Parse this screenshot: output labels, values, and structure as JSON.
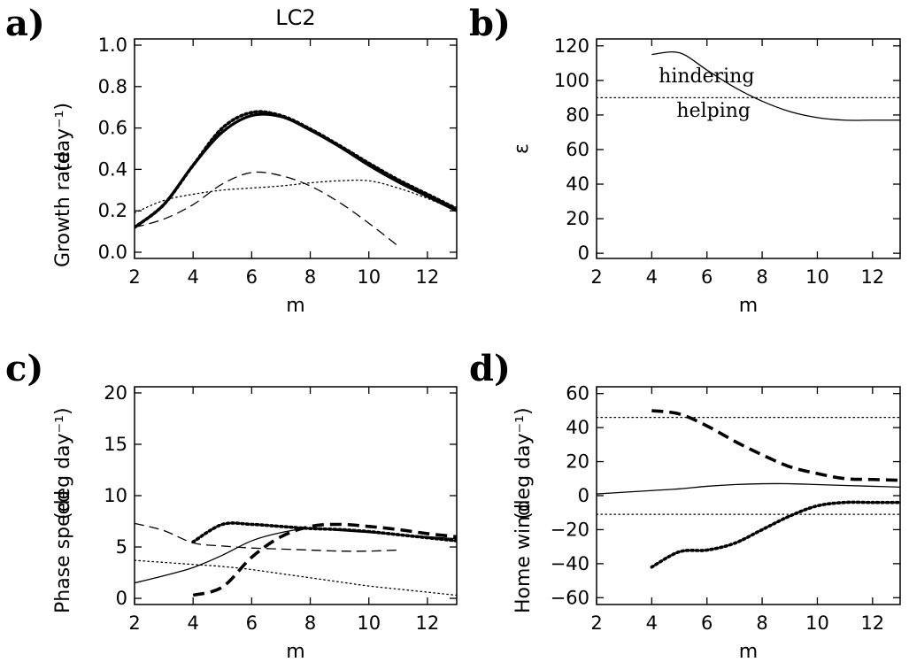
{
  "colors": {
    "foreground": "#000000",
    "background": "#ffffff"
  },
  "chart_data": [
    {
      "type": "line",
      "panel_label": "a)",
      "title": "LC2",
      "xlabel": "m",
      "ylabel": "Growth rate",
      "ylabel_unit": "(day⁻¹)",
      "xlim": [
        2,
        13
      ],
      "ylim": [
        -0.03,
        1.03
      ],
      "xticks": [
        2,
        4,
        6,
        8,
        10,
        12
      ],
      "xtick_labels": [
        "2",
        "4",
        "6",
        "8",
        "10",
        "12"
      ],
      "yticks": [
        0.0,
        0.2,
        0.4,
        0.6,
        0.8,
        1.0
      ],
      "ytick_labels": [
        "0.0",
        "0.2",
        "0.4",
        "0.6",
        "0.8",
        "1.0"
      ],
      "grid": false,
      "series": [
        {
          "style": "solid-thick",
          "x": [
            2,
            3,
            4,
            5,
            6,
            7,
            8,
            9,
            10,
            11,
            12,
            13
          ],
          "y": [
            0.12,
            0.23,
            0.42,
            0.58,
            0.66,
            0.655,
            0.59,
            0.51,
            0.42,
            0.34,
            0.27,
            0.2
          ]
        },
        {
          "style": "dotted-thick",
          "x": [
            2,
            3,
            4,
            5,
            6,
            7,
            8,
            9,
            10,
            11,
            12,
            13
          ],
          "y": [
            0.12,
            0.23,
            0.42,
            0.6,
            0.675,
            0.66,
            0.595,
            0.515,
            0.43,
            0.35,
            0.28,
            0.21
          ]
        },
        {
          "style": "dashed",
          "x": [
            2,
            3,
            4,
            5,
            6,
            7,
            8,
            9,
            10,
            11
          ],
          "y": [
            0.12,
            0.16,
            0.23,
            0.33,
            0.385,
            0.37,
            0.32,
            0.24,
            0.14,
            0.03
          ]
        },
        {
          "style": "dotted",
          "x": [
            2,
            3,
            4,
            5,
            6,
            7,
            8,
            9,
            10,
            11,
            12,
            13
          ],
          "y": [
            0.19,
            0.25,
            0.28,
            0.3,
            0.31,
            0.32,
            0.335,
            0.345,
            0.345,
            0.31,
            0.26,
            0.2
          ]
        }
      ]
    },
    {
      "type": "line",
      "panel_label": "b)",
      "xlabel": "m",
      "ylabel": "ε",
      "xlim": [
        2,
        13
      ],
      "ylim": [
        -3,
        124
      ],
      "xticks": [
        2,
        4,
        6,
        8,
        10,
        12
      ],
      "xtick_labels": [
        "2",
        "4",
        "6",
        "8",
        "10",
        "12"
      ],
      "yticks": [
        0,
        20,
        40,
        60,
        80,
        100,
        120
      ],
      "ytick_labels": [
        "0",
        "20",
        "40",
        "60",
        "80",
        "100",
        "120"
      ],
      "grid": false,
      "annotations": [
        {
          "text": "hindering",
          "x": 4.25,
          "y": 99
        },
        {
          "text": "helping",
          "x": 4.9,
          "y": 79
        }
      ],
      "series": [
        {
          "style": "solid",
          "x": [
            4,
            5,
            6,
            7,
            8,
            9,
            10,
            11,
            12,
            13
          ],
          "y": [
            115,
            116,
            106,
            96,
            88,
            82,
            78.5,
            77,
            77,
            77
          ]
        },
        {
          "style": "dotted",
          "x": [
            2,
            13
          ],
          "y": [
            90,
            90
          ]
        }
      ]
    },
    {
      "type": "line",
      "panel_label": "c)",
      "xlabel": "m",
      "ylabel": "Phase speed",
      "ylabel_unit": "(deg day⁻¹)",
      "xlim": [
        2,
        13
      ],
      "ylim": [
        -0.6,
        20.6
      ],
      "xticks": [
        2,
        4,
        6,
        8,
        10,
        12
      ],
      "xtick_labels": [
        "2",
        "4",
        "6",
        "8",
        "10",
        "12"
      ],
      "yticks": [
        0,
        5,
        10,
        15,
        20
      ],
      "ytick_labels": [
        "0",
        "5",
        "10",
        "15",
        "20"
      ],
      "grid": false,
      "series": [
        {
          "style": "solid",
          "x": [
            2,
            3,
            4,
            5,
            6,
            7,
            8,
            9,
            10,
            11,
            12,
            13
          ],
          "y": [
            1.5,
            2.2,
            3.0,
            4.2,
            5.6,
            6.4,
            6.8,
            6.6,
            6.4,
            6.2,
            6.0,
            5.8
          ]
        },
        {
          "style": "dashed-thick",
          "x": [
            4,
            5,
            6,
            7,
            8,
            9,
            10,
            11,
            12,
            13
          ],
          "y": [
            0.3,
            1.1,
            4.0,
            6.0,
            7.0,
            7.2,
            7.0,
            6.7,
            6.3,
            6.0
          ]
        },
        {
          "style": "dotted-thick",
          "x": [
            4,
            5,
            6,
            7,
            8,
            9,
            10,
            11,
            12,
            13
          ],
          "y": [
            5.5,
            7.2,
            7.2,
            7.0,
            6.8,
            6.7,
            6.5,
            6.2,
            5.9,
            5.6
          ]
        },
        {
          "style": "dashed",
          "x": [
            2,
            3,
            4,
            5,
            6,
            7,
            8,
            9,
            10,
            11
          ],
          "y": [
            7.3,
            6.6,
            5.4,
            5.1,
            4.9,
            4.8,
            4.7,
            4.6,
            4.6,
            4.7
          ]
        },
        {
          "style": "dotted",
          "x": [
            2,
            3,
            4,
            5,
            6,
            7,
            8,
            9,
            10,
            11,
            12,
            13
          ],
          "y": [
            3.7,
            3.5,
            3.3,
            3.1,
            2.8,
            2.4,
            2.0,
            1.6,
            1.2,
            0.9,
            0.6,
            0.3
          ]
        }
      ]
    },
    {
      "type": "line",
      "panel_label": "d)",
      "xlabel": "m",
      "ylabel": "Home wind",
      "ylabel_unit": "(deg day⁻¹)",
      "xlim": [
        2,
        13
      ],
      "ylim": [
        -64,
        64
      ],
      "xticks": [
        2,
        4,
        6,
        8,
        10,
        12
      ],
      "xtick_labels": [
        "2",
        "4",
        "6",
        "8",
        "10",
        "12"
      ],
      "yticks": [
        -60,
        -40,
        -20,
        0,
        20,
        40,
        60
      ],
      "ytick_labels": [
        "−60",
        "−40",
        "−20",
        "0",
        "20",
        "40",
        "60"
      ],
      "grid": false,
      "series": [
        {
          "style": "solid",
          "x": [
            2,
            3,
            4,
            5,
            6,
            7,
            8,
            9,
            10,
            11,
            12,
            13
          ],
          "y": [
            1,
            2,
            3,
            4,
            5.5,
            6.5,
            7,
            7,
            6.5,
            6,
            5.5,
            5
          ]
        },
        {
          "style": "dashed-thick",
          "x": [
            4,
            5,
            6,
            7,
            8,
            9,
            10,
            11,
            12,
            13
          ],
          "y": [
            50,
            48,
            41,
            32,
            24,
            17,
            13,
            10,
            9.5,
            9
          ]
        },
        {
          "style": "dotted-thick",
          "x": [
            4,
            5,
            6,
            7,
            8,
            9,
            10,
            11,
            12,
            13
          ],
          "y": [
            -42,
            -33,
            -32,
            -28,
            -20,
            -12,
            -6,
            -4,
            -4,
            -4
          ]
        },
        {
          "style": "dotted",
          "x": [
            2,
            13
          ],
          "y": [
            46,
            46
          ]
        },
        {
          "style": "dotted",
          "x": [
            2,
            13
          ],
          "y": [
            -11,
            -11
          ]
        }
      ]
    }
  ]
}
